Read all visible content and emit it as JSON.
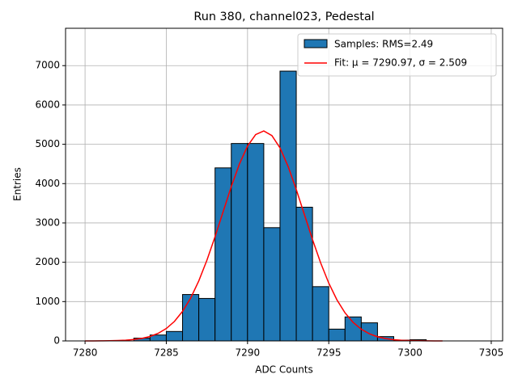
{
  "chart_data": {
    "type": "histogram",
    "title": "Run 380, channel023, Pedestal",
    "xlabel": "ADC Counts",
    "ylabel": "Entries",
    "name": "Samples: RMS=2.49",
    "color": "#1f77b4",
    "edgecolor": "#000000",
    "bins": [
      7283,
      7284,
      7285,
      7286,
      7287,
      7288,
      7289,
      7290,
      7291,
      7292,
      7293,
      7294,
      7295,
      7296,
      7297,
      7298,
      7299,
      7300,
      7301
    ],
    "values": [
      70,
      150,
      240,
      1180,
      1080,
      4400,
      5020,
      5020,
      2880,
      6860,
      3400,
      1380,
      300,
      610,
      460,
      110,
      20,
      30
    ],
    "fit": {
      "type": "line",
      "name": "Fit: μ = 7290.97, σ = 2.509",
      "color": "#ff0000",
      "x": [
        7280,
        7280.5,
        7281,
        7281.5,
        7282,
        7282.5,
        7283,
        7283.5,
        7284,
        7284.5,
        7285,
        7285.5,
        7286,
        7286.5,
        7287,
        7287.5,
        7288,
        7288.5,
        7289,
        7289.5,
        7290,
        7290.5,
        7291,
        7291.5,
        7292,
        7292.5,
        7293,
        7293.5,
        7294,
        7294.5,
        7295,
        7295.5,
        7296,
        7296.5,
        7297,
        7297.5,
        7298,
        7298.5,
        7299,
        7299.5,
        7300,
        7300.5,
        7301,
        7301.5,
        7302
      ],
      "values": [
        0,
        1,
        2,
        4,
        9,
        18,
        35,
        64,
        113,
        193,
        315,
        495,
        752,
        1089,
        1527,
        2052,
        2649,
        3288,
        3925,
        4497,
        4955,
        5247,
        5340,
        5222,
        4908,
        4434,
        3850,
        3213,
        2576,
        1984,
        1469,
        1045,
        714,
        470,
        297,
        181,
        105,
        59,
        32,
        16,
        8,
        4,
        2,
        1,
        0
      ]
    },
    "xlim": [
      7278.8,
      7305.7
    ],
    "xticks": [
      7280,
      7285,
      7290,
      7295,
      7300,
      7305
    ],
    "ylim": [
      0,
      7950
    ],
    "yticks": [
      0,
      1000,
      2000,
      3000,
      4000,
      5000,
      6000,
      7000
    ],
    "grid": true,
    "legend": "upper right"
  }
}
